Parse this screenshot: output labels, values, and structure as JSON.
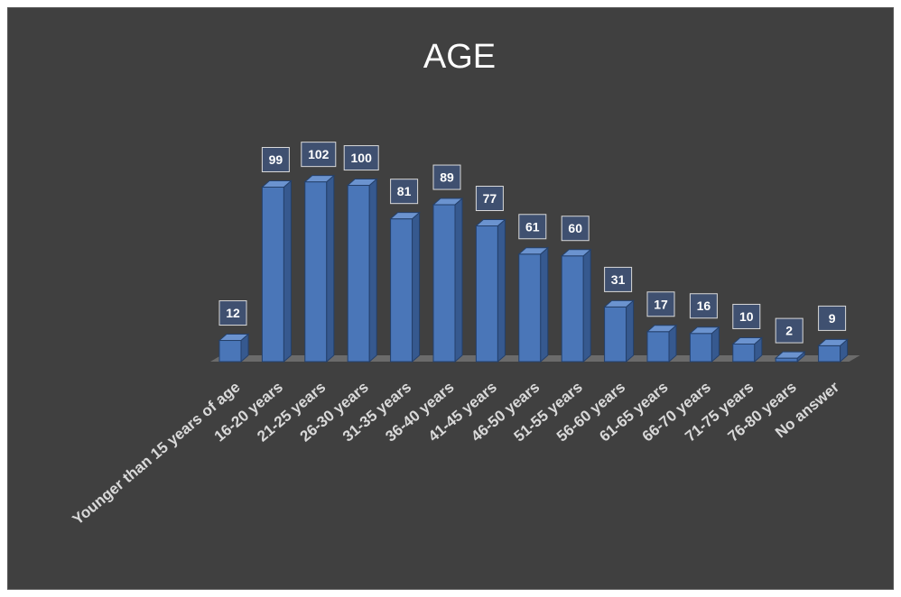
{
  "chart_data": {
    "type": "bar",
    "style": "3d-column",
    "title": "AGE",
    "xlabel": "",
    "ylabel": "",
    "ylim": [
      0,
      110
    ],
    "grid": false,
    "legend": "none",
    "categories": [
      "Younger than 15 years of age",
      "16-20 years",
      "21-25 years",
      "26-30 years",
      "31-35 years",
      "36-40 years",
      "41-45 years",
      "46-50 years",
      "51-55 years",
      "56-60 years",
      "61-65 years",
      "66-70 years",
      "71-75 years",
      "76-80 years",
      "No answer"
    ],
    "values": [
      12,
      99,
      102,
      100,
      81,
      89,
      77,
      61,
      60,
      31,
      17,
      16,
      10,
      2,
      9
    ],
    "colors": {
      "background": "#404040",
      "bar_front": "#4a76b8",
      "bar_side": "#36598f",
      "bar_top": "#6b93cf",
      "bar_edge": "#24406b",
      "floor": "#6b6b6b",
      "label_box": "#3f5070",
      "label_border": "#d9d9d9",
      "title": "#ffffff",
      "tick_label": "#d9d9d9"
    }
  }
}
